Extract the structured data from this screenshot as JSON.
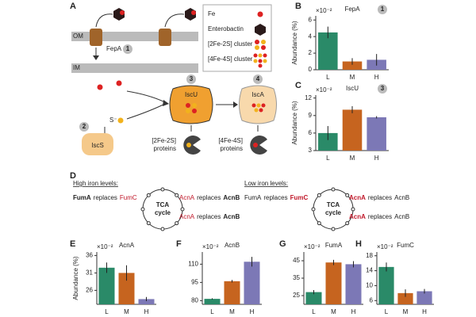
{
  "panel_labels": [
    "A",
    "B",
    "C",
    "D",
    "E",
    "F",
    "G",
    "H"
  ],
  "diagram_a": {
    "membranes": [
      "OM",
      "IM"
    ],
    "transporter": "FepA",
    "transporter_badge": "1",
    "legend": [
      "Fe",
      "Enterobactin",
      "[2Fe-2S] cluster",
      "[4Fe-4S] cluster"
    ],
    "nodes": [
      {
        "badge": "2",
        "label": "IscS"
      },
      {
        "badge": "3",
        "label": "IscU"
      },
      {
        "badge": "4",
        "label": "IscA"
      }
    ],
    "sulfide": "S⁻",
    "products": [
      [
        "[2Fe-2S]",
        "proteins"
      ],
      [
        "[4Fe-4S]",
        "proteins"
      ]
    ]
  },
  "diagram_d": {
    "high": {
      "heading": "High iron levels:",
      "cycle": [
        "TCA",
        "cycle"
      ],
      "statements": [
        [
          {
            "text": "FumA",
            "style": "bold"
          },
          {
            "text": "replaces",
            "style": "plain"
          },
          {
            "text": "FumC",
            "style": "red"
          }
        ],
        [
          {
            "text": "AcnA",
            "style": "red"
          },
          {
            "text": "replaces",
            "style": "plain"
          },
          {
            "text": "AcnB",
            "style": "bold"
          }
        ],
        [
          {
            "text": "AcnA",
            "style": "red"
          },
          {
            "text": "replaces",
            "style": "plain"
          },
          {
            "text": "AcnB",
            "style": "bold"
          }
        ]
      ]
    },
    "low": {
      "heading": "Low iron levels:",
      "cycle": [
        "TCA",
        "cycle"
      ],
      "statements": [
        [
          {
            "text": "FumA",
            "style": "plain"
          },
          {
            "text": "replaces",
            "style": "plain"
          },
          {
            "text": "FumC",
            "style": "red-bold"
          }
        ],
        [
          {
            "text": "AcnA",
            "style": "red-bold"
          },
          {
            "text": "replaces",
            "style": "plain"
          },
          {
            "text": "AcnB",
            "style": "plain"
          }
        ],
        [
          {
            "text": "AcnA",
            "style": "red-bold"
          },
          {
            "text": "replaces",
            "style": "plain"
          },
          {
            "text": "AcnB",
            "style": "plain"
          }
        ]
      ]
    }
  },
  "chart_data": [
    {
      "type": "bar",
      "title": "FepA",
      "badge": "1",
      "scale_label": "×10⁻²",
      "ylabel": "Abundance (%)",
      "categories": [
        "L",
        "M",
        "H"
      ],
      "values": [
        4.5,
        1.0,
        1.2
      ],
      "errors": [
        0.7,
        0.4,
        0.7
      ],
      "colors": [
        "#2a8a68",
        "#c6641f",
        "#7c78b6"
      ],
      "ylim": [
        0,
        6.5
      ],
      "yticks": [
        0,
        2,
        4,
        6
      ]
    },
    {
      "type": "bar",
      "title": "IscU",
      "badge": "3",
      "scale_label": "×10⁻²",
      "ylabel": "Abundance (%)",
      "categories": [
        "L",
        "M",
        "H"
      ],
      "values": [
        6,
        10,
        8.7
      ],
      "errors": [
        1.2,
        0.6,
        0.2
      ],
      "colors": [
        "#2a8a68",
        "#c6641f",
        "#7c78b6"
      ],
      "ylim": [
        3,
        12.5
      ],
      "yticks": [
        3,
        6,
        9,
        12
      ]
    },
    {
      "type": "bar",
      "title": "AcnA",
      "scale_label": "×10⁻²",
      "ylabel": "Abundance (%)",
      "categories": [
        "L",
        "M",
        "H"
      ],
      "values": [
        32.5,
        31,
        23.5
      ],
      "errors": [
        1.5,
        2.2,
        0.6
      ],
      "colors": [
        "#2a8a68",
        "#c6641f",
        "#7c78b6"
      ],
      "ylim": [
        22,
        37
      ],
      "yticks": [
        26,
        31,
        36
      ]
    },
    {
      "type": "bar",
      "title": "AcnB",
      "scale_label": "×10⁻²",
      "categories": [
        "L",
        "M",
        "H"
      ],
      "values": [
        81.5,
        96,
        112
      ],
      "errors": [
        0.5,
        1,
        4
      ],
      "colors": [
        "#2a8a68",
        "#c6641f",
        "#7c78b6"
      ],
      "ylim": [
        77,
        120
      ],
      "yticks": [
        80,
        95,
        110
      ]
    },
    {
      "type": "bar",
      "title": "FumA",
      "scale_label": "×10⁻²",
      "categories": [
        "L",
        "M",
        "H"
      ],
      "values": [
        27,
        44,
        43
      ],
      "errors": [
        1.2,
        1.5,
        1.8
      ],
      "colors": [
        "#2a8a68",
        "#c6641f",
        "#7c78b6"
      ],
      "ylim": [
        20,
        50
      ],
      "yticks": [
        25,
        35,
        45
      ]
    },
    {
      "type": "bar",
      "title": "FumC",
      "scale_label": "×10⁻²",
      "categories": [
        "L",
        "M",
        "H"
      ],
      "values": [
        15,
        8,
        8.5
      ],
      "errors": [
        1.2,
        1,
        0.6
      ],
      "colors": [
        "#2a8a68",
        "#c6641f",
        "#7c78b6"
      ],
      "ylim": [
        5,
        19
      ],
      "yticks": [
        6,
        10,
        14,
        18
      ]
    }
  ]
}
